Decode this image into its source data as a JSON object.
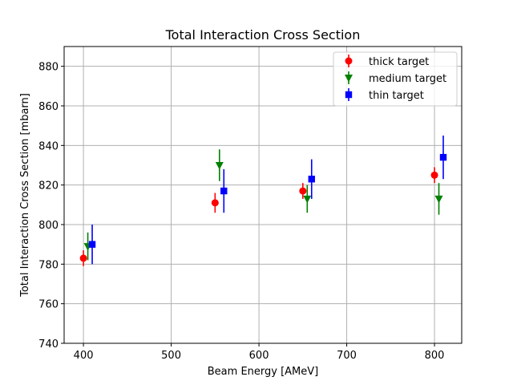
{
  "chart_data": {
    "type": "scatter",
    "title": "Total Interaction Cross Section",
    "xlabel": "Beam Energy [AMeV]",
    "ylabel": "Total Interaction Cross Section [mbarn]",
    "xlim": [
      378,
      831
    ],
    "ylim": [
      740,
      890
    ],
    "xticks": [
      400,
      500,
      600,
      700,
      800
    ],
    "yticks": [
      740,
      760,
      780,
      800,
      820,
      840,
      860,
      880
    ],
    "grid": true,
    "legend_position": "top-right",
    "series": [
      {
        "name": "thick target",
        "color": "#ff0000",
        "marker": "circle",
        "x": [
          400,
          550,
          650,
          800
        ],
        "y": [
          783,
          811,
          817,
          825
        ],
        "yerr": [
          4,
          5,
          4,
          4
        ]
      },
      {
        "name": "medium target",
        "color": "#008000",
        "marker": "triangle-down",
        "x": [
          405,
          555,
          655,
          805
        ],
        "y": [
          789,
          830,
          813,
          813
        ],
        "yerr": [
          7,
          8,
          7,
          8
        ]
      },
      {
        "name": "thin target",
        "color": "#0000ff",
        "marker": "square",
        "x": [
          410,
          560,
          660,
          810
        ],
        "y": [
          790,
          817,
          823,
          834
        ],
        "yerr": [
          10,
          11,
          10,
          11
        ]
      }
    ]
  }
}
